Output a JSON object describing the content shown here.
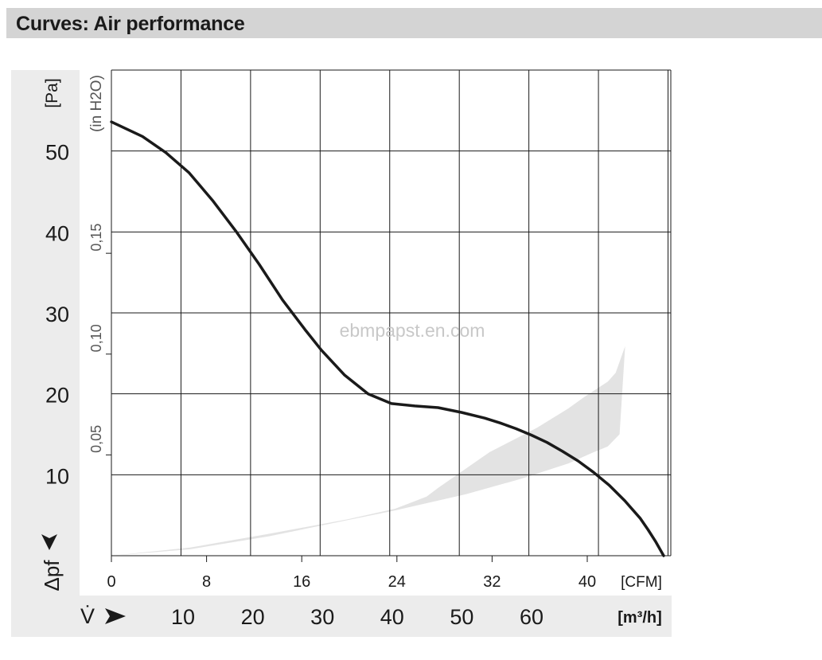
{
  "header": {
    "title": "Curves: Air performance"
  },
  "colors": {
    "header_bg": "#d4d4d4",
    "panel_bg": "#ececec",
    "curve": "#1a1a1a",
    "grid": "#1a1a1a",
    "band": "#e3e3e3",
    "watermark": "#c8c8c8"
  },
  "chart_data": {
    "type": "line",
    "title": "",
    "ylabel": "Δpf",
    "ylabel_unit": "[Pa]",
    "ylabel_secondary": "(in H2O)",
    "xlabel": "V̇",
    "xlabel_unit_primary": "[CFM]",
    "xlabel_unit_secondary": "[m³/h]",
    "watermark": "EBMPAPST.EN.COM",
    "xlim": [
      0,
      71
    ],
    "ylim": [
      0,
      60
    ],
    "grid": true,
    "pa_ticks": [
      "10",
      "20",
      "30",
      "40",
      "50"
    ],
    "pa_tick_values": [
      10,
      20,
      30,
      40,
      50
    ],
    "inh2o_ticks": [
      "0,05",
      "0,10",
      "0,15"
    ],
    "inh2o_tick_values": [
      0.05,
      0.1,
      0.15
    ],
    "cfm_ticks": [
      "0",
      "8",
      "16",
      "24",
      "32",
      "40"
    ],
    "cfm_tick_values": [
      0,
      8,
      16,
      24,
      32,
      40
    ],
    "m3h_ticks": [
      "10",
      "20",
      "30",
      "40",
      "50",
      "60"
    ],
    "m3h_tick_values": [
      10,
      20,
      30,
      40,
      50,
      60
    ],
    "series": [
      {
        "x": [
          0,
          4,
          7,
          10,
          13,
          16,
          19,
          22,
          25,
          27,
          30,
          33,
          36,
          39,
          42,
          45,
          48,
          50,
          52,
          54,
          56,
          58,
          60,
          62,
          64,
          66,
          68,
          69,
          70,
          71
        ],
        "y": [
          53.6,
          51.8,
          49.8,
          47.3,
          43.9,
          40.1,
          36.0,
          31.6,
          27.8,
          25.4,
          22.3,
          20.0,
          18.8,
          18.5,
          18.3,
          17.7,
          17.0,
          16.4,
          15.7,
          14.9,
          14.0,
          12.9,
          11.7,
          10.3,
          8.7,
          6.8,
          4.6,
          3.2,
          1.7,
          0
        ]
      }
    ],
    "operating_band": {
      "upper_x": [
        0,
        10,
        20,
        30,
        36,
        40,
        41.5,
        48,
        54,
        58,
        60,
        63,
        64,
        65.2
      ],
      "upper_y": [
        0,
        1.0,
        2.7,
        4.5,
        5.8,
        7.3,
        8.4,
        12.8,
        15.8,
        18.2,
        19.6,
        21.5,
        22.6,
        25.9
      ],
      "lower_x": [
        0,
        10,
        20,
        30,
        36,
        45,
        52,
        58,
        61,
        63,
        64.5,
        65.2
      ],
      "lower_y": [
        0,
        0.8,
        2.4,
        4.4,
        5.6,
        7.6,
        9.5,
        11.4,
        12.7,
        13.5,
        15.0,
        25.9
      ]
    }
  }
}
